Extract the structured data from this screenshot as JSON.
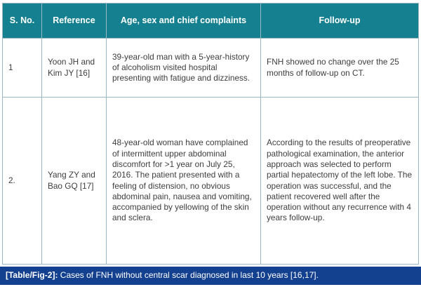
{
  "table": {
    "headers": [
      "S. No.",
      "Reference",
      "Age, sex and chief complaints",
      "Follow-up"
    ],
    "rows": [
      {
        "sno": "1",
        "reference": "Yoon JH and Kim JY [16]",
        "complaints": "39-year-old man with a 5-year-history of alcoholism visited hospital presenting with fatigue and dizziness.",
        "followup": "FNH showed no change over the 25 months of follow-up on CT."
      },
      {
        "sno": "2.",
        "reference": "Yang ZY and Bao GQ [17]",
        "complaints": "48-year-old woman have complained of intermittent upper abdominal discomfort for >1 year on July 25, 2016. The patient presented with a feeling of distension, no obvious abdominal pain, nausea and vomiting, accompanied by yellowing of the skin and sclera.",
        "followup": "According to the results of preoperative pathological examination, the anterior approach was selected to perform partial hepatectomy of the left lobe. The operation was successful, and the patient recovered well after the operation without any recurrence with 4 years follow-up."
      }
    ],
    "caption": {
      "label": "[Table/Fig-2]:",
      "text": " Cases of FNH without central scar diagnosed in last 10 years [16,17]."
    },
    "colors": {
      "header_bg": "#15808f",
      "header_text": "#ffffff",
      "caption_bg": "#14418f",
      "caption_text": "#ffffff",
      "border": "#9cb8c4",
      "body_text": "#3d3d3d"
    }
  }
}
